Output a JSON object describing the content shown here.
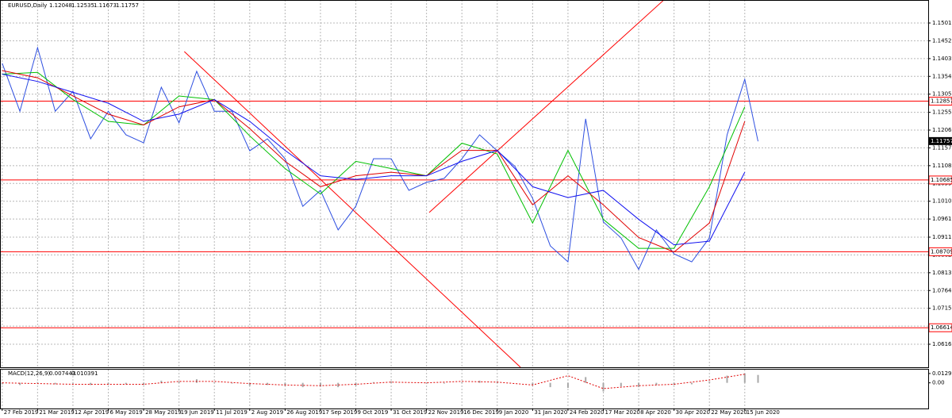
{
  "chart_data": {
    "type": "line",
    "title": "EURUSD,Daily",
    "ohlc": [
      1.12048,
      1.12535,
      1.11673,
      1.11757
    ],
    "xlim": [
      -1,
      419
    ],
    "xticks": [
      {
        "value": 0,
        "label": "27 Feb 2019"
      },
      {
        "value": 16,
        "label": "21 Mar 2019"
      },
      {
        "value": 32,
        "label": "12 Apr 2019"
      },
      {
        "value": 48,
        "label": "6 May 2019"
      },
      {
        "value": 64,
        "label": "28 May 2019"
      },
      {
        "value": 80,
        "label": "19 Jun 2019"
      },
      {
        "value": 96,
        "label": "11 Jul 2019"
      },
      {
        "value": 112,
        "label": "2 Aug 2019"
      },
      {
        "value": 128,
        "label": "26 Aug 2019"
      },
      {
        "value": 144,
        "label": "17 Sep 2019"
      },
      {
        "value": 160,
        "label": "9 Oct 2019"
      },
      {
        "value": 176,
        "label": "31 Oct 2019"
      },
      {
        "value": 192,
        "label": "22 Nov 2019"
      },
      {
        "value": 208,
        "label": "16 Dec 2019"
      },
      {
        "value": 224,
        "label": "9 Jan 2020"
      },
      {
        "value": 240,
        "label": "31 Jan 2020"
      },
      {
        "value": 256,
        "label": "24 Feb 2020"
      },
      {
        "value": 272,
        "label": "17 Mar 2020"
      },
      {
        "value": 288,
        "label": "8 Apr 2020"
      },
      {
        "value": 304,
        "label": "30 Apr 2020"
      },
      {
        "value": 320,
        "label": "22 May 2020"
      },
      {
        "value": 336,
        "label": "15 Jun 2020"
      }
    ],
    "ylim": [
      1.05526,
      1.15644
    ],
    "yticks": [
      {
        "value": 1.1501,
        "label": "1.15010"
      },
      {
        "value": 1.1452,
        "label": "1.14520"
      },
      {
        "value": 1.1403,
        "label": "1.14030"
      },
      {
        "value": 1.1354,
        "label": "1.13540"
      },
      {
        "value": 1.1305,
        "label": "1.13050"
      },
      {
        "value": 1.1255,
        "label": "1.12550"
      },
      {
        "value": 1.1206,
        "label": "1.12060"
      },
      {
        "value": 1.1157,
        "label": "1.11570"
      },
      {
        "value": 1.1108,
        "label": "1.11080"
      },
      {
        "value": 1.1059,
        "label": "1.10590"
      },
      {
        "value": 1.101,
        "label": "1.10100"
      },
      {
        "value": 1.0961,
        "label": "1.09610"
      },
      {
        "value": 1.0911,
        "label": "1.09110"
      },
      {
        "value": 1.0862,
        "label": "1.08620"
      },
      {
        "value": 1.0813,
        "label": "1.08130"
      },
      {
        "value": 1.0764,
        "label": "1.07640"
      },
      {
        "value": 1.0715,
        "label": "1.07150"
      },
      {
        "value": 1.0666,
        "label": "1.06660"
      },
      {
        "value": 1.0616,
        "label": "1.06160"
      }
    ],
    "grid": true,
    "series": [
      {
        "color": "#2e4fe0",
        "x": [
          0,
          8,
          16,
          24,
          32,
          40,
          48,
          56,
          64,
          72,
          80,
          88,
          96,
          104,
          112,
          120,
          128,
          136,
          144,
          152,
          160,
          168,
          176,
          184,
          192,
          200,
          208,
          216,
          224,
          232,
          240,
          248,
          256,
          264,
          272,
          280,
          288,
          296,
          304,
          312,
          320,
          328,
          336,
          342
        ],
        "values": [
          1.139,
          1.1258,
          1.1433,
          1.1258,
          1.1313,
          1.1182,
          1.1258,
          1.1193,
          1.1171,
          1.1324,
          1.1226,
          1.1368,
          1.1258,
          1.1258,
          1.1149,
          1.1182,
          1.1127,
          1.0996,
          1.104,
          1.0931,
          1.0996,
          1.1127,
          1.1127,
          1.104,
          1.1062,
          1.1073,
          1.1127,
          1.1193,
          1.1149,
          1.1106,
          1.1018,
          1.0887,
          1.0843,
          1.1237,
          1.0953,
          1.0909,
          1.0822,
          1.0931,
          1.0865,
          1.0843,
          1.0909,
          1.1193,
          1.1346,
          1.1175
        ]
      },
      {
        "color": "#00c000",
        "x": [
          0,
          16,
          32,
          48,
          64,
          80,
          96,
          112,
          128,
          144,
          160,
          176,
          192,
          208,
          224,
          240,
          256,
          272,
          288,
          304,
          320,
          336
        ],
        "values": [
          1.136,
          1.1365,
          1.129,
          1.123,
          1.122,
          1.13,
          1.129,
          1.119,
          1.11,
          1.103,
          1.112,
          1.11,
          1.108,
          1.117,
          1.114,
          1.095,
          1.115,
          1.096,
          1.088,
          1.088,
          1.105,
          1.127
        ]
      },
      {
        "color": "#e00000",
        "x": [
          0,
          16,
          32,
          48,
          64,
          80,
          96,
          112,
          128,
          144,
          160,
          176,
          192,
          208,
          224,
          240,
          256,
          272,
          288,
          304,
          320,
          336
        ],
        "values": [
          1.137,
          1.135,
          1.13,
          1.125,
          1.122,
          1.127,
          1.129,
          1.121,
          1.112,
          1.105,
          1.108,
          1.109,
          1.108,
          1.115,
          1.115,
          1.1,
          1.108,
          1.1,
          1.091,
          1.087,
          1.095,
          1.123
        ]
      },
      {
        "color": "#1010f0",
        "x": [
          0,
          16,
          32,
          48,
          64,
          80,
          96,
          112,
          128,
          144,
          160,
          176,
          192,
          208,
          224,
          240,
          256,
          272,
          288,
          304,
          320,
          336
        ],
        "values": [
          1.136,
          1.134,
          1.131,
          1.128,
          1.123,
          1.125,
          1.129,
          1.123,
          1.115,
          1.108,
          1.107,
          1.108,
          1.108,
          1.112,
          1.115,
          1.105,
          1.102,
          1.104,
          1.096,
          1.089,
          1.09,
          1.109
        ]
      }
    ],
    "level_color": "#ff0000",
    "levels": [
      1.12857,
      1.10685,
      1.08709,
      1.06614
    ],
    "current_price": 1.11757,
    "trendlines": [
      {
        "x": [
          82.4,
          234.5
        ],
        "values": [
          1.14224,
          1.05527
        ]
      },
      {
        "x": [
          193.2,
          299.3
        ],
        "values": [
          1.0979,
          1.1564
        ]
      }
    ],
    "macd": {
      "label": "MACD(12,26,9)",
      "printed_values": [
        0.007443,
        0.010391
      ],
      "ylim": [
        -0.0357,
        0.0184
      ],
      "yticks": [
        0.01299,
        {
          "value": 0,
          "label": "0.00"
        }
      ],
      "histogram": {
        "color": "#a8a8a8",
        "x": [
          0,
          8,
          16,
          24,
          32,
          40,
          48,
          56,
          64,
          72,
          80,
          88,
          96,
          104,
          112,
          120,
          128,
          136,
          144,
          152,
          160,
          168,
          176,
          184,
          192,
          200,
          208,
          216,
          224,
          232,
          240,
          248,
          256,
          264,
          272,
          280,
          288,
          296,
          304,
          312,
          320,
          328,
          336,
          342
        ],
        "values": [
          -0.002,
          -0.003,
          0.001,
          -0.002,
          -0.001,
          -0.003,
          -0.002,
          -0.002,
          -0.003,
          0.003,
          0.002,
          0.005,
          0.001,
          -0.001,
          -0.004,
          -0.003,
          -0.004,
          -0.006,
          -0.005,
          -0.006,
          -0.004,
          0.001,
          0.002,
          0,
          -0.001,
          -0.001,
          0.001,
          0.003,
          0.002,
          0,
          -0.003,
          -0.006,
          -0.007,
          0.008,
          -0.012,
          -0.005,
          -0.006,
          -0.003,
          -0.003,
          -0.002,
          0.002,
          0.01,
          0.013,
          0.011
        ]
      },
      "signal": {
        "color": "#e00000",
        "x": [
          0,
          16,
          32,
          48,
          64,
          80,
          96,
          112,
          128,
          144,
          160,
          176,
          192,
          208,
          224,
          240,
          256,
          272,
          288,
          304,
          320,
          336
        ],
        "values": [
          0,
          -0.001,
          -0.002,
          -0.002,
          -0.002,
          0.002,
          0.002,
          -0.001,
          -0.003,
          -0.004,
          -0.002,
          0.001,
          0,
          0.002,
          0.001,
          -0.003,
          0.01,
          -0.008,
          -0.004,
          -0.002,
          0.004,
          0.012
        ]
      }
    }
  }
}
